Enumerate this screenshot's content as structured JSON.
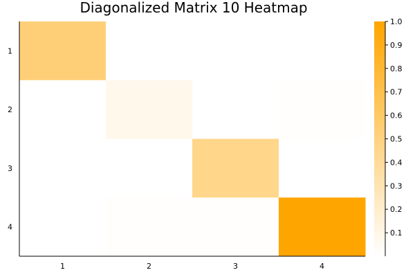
{
  "chart_data": {
    "type": "heatmap",
    "title": "Diagonalized Matrix 10 Heatmap",
    "xlabel": "",
    "ylabel": "",
    "x_categories": [
      "1",
      "2",
      "3",
      "4"
    ],
    "y_categories": [
      "1",
      "2",
      "3",
      "4"
    ],
    "values": [
      [
        0.53,
        0.0,
        0.0,
        0.0
      ],
      [
        0.0,
        0.08,
        0.0,
        0.01
      ],
      [
        0.0,
        0.0,
        0.46,
        0.0
      ],
      [
        0.0,
        0.01,
        0.01,
        1.0
      ]
    ],
    "colorbar": {
      "range": [
        0,
        1.0
      ],
      "ticks": [
        "0.1",
        "0.2",
        "0.3",
        "0.4",
        "0.5",
        "0.6",
        "0.7",
        "0.8",
        "0.9",
        "1.0"
      ],
      "tick_values": [
        0.1,
        0.2,
        0.3,
        0.4,
        0.5,
        0.6,
        0.7,
        0.8,
        0.9,
        1.0
      ],
      "color_low": "#ffffff",
      "color_high": "#ffa500"
    },
    "grid": false,
    "legend": "right"
  }
}
